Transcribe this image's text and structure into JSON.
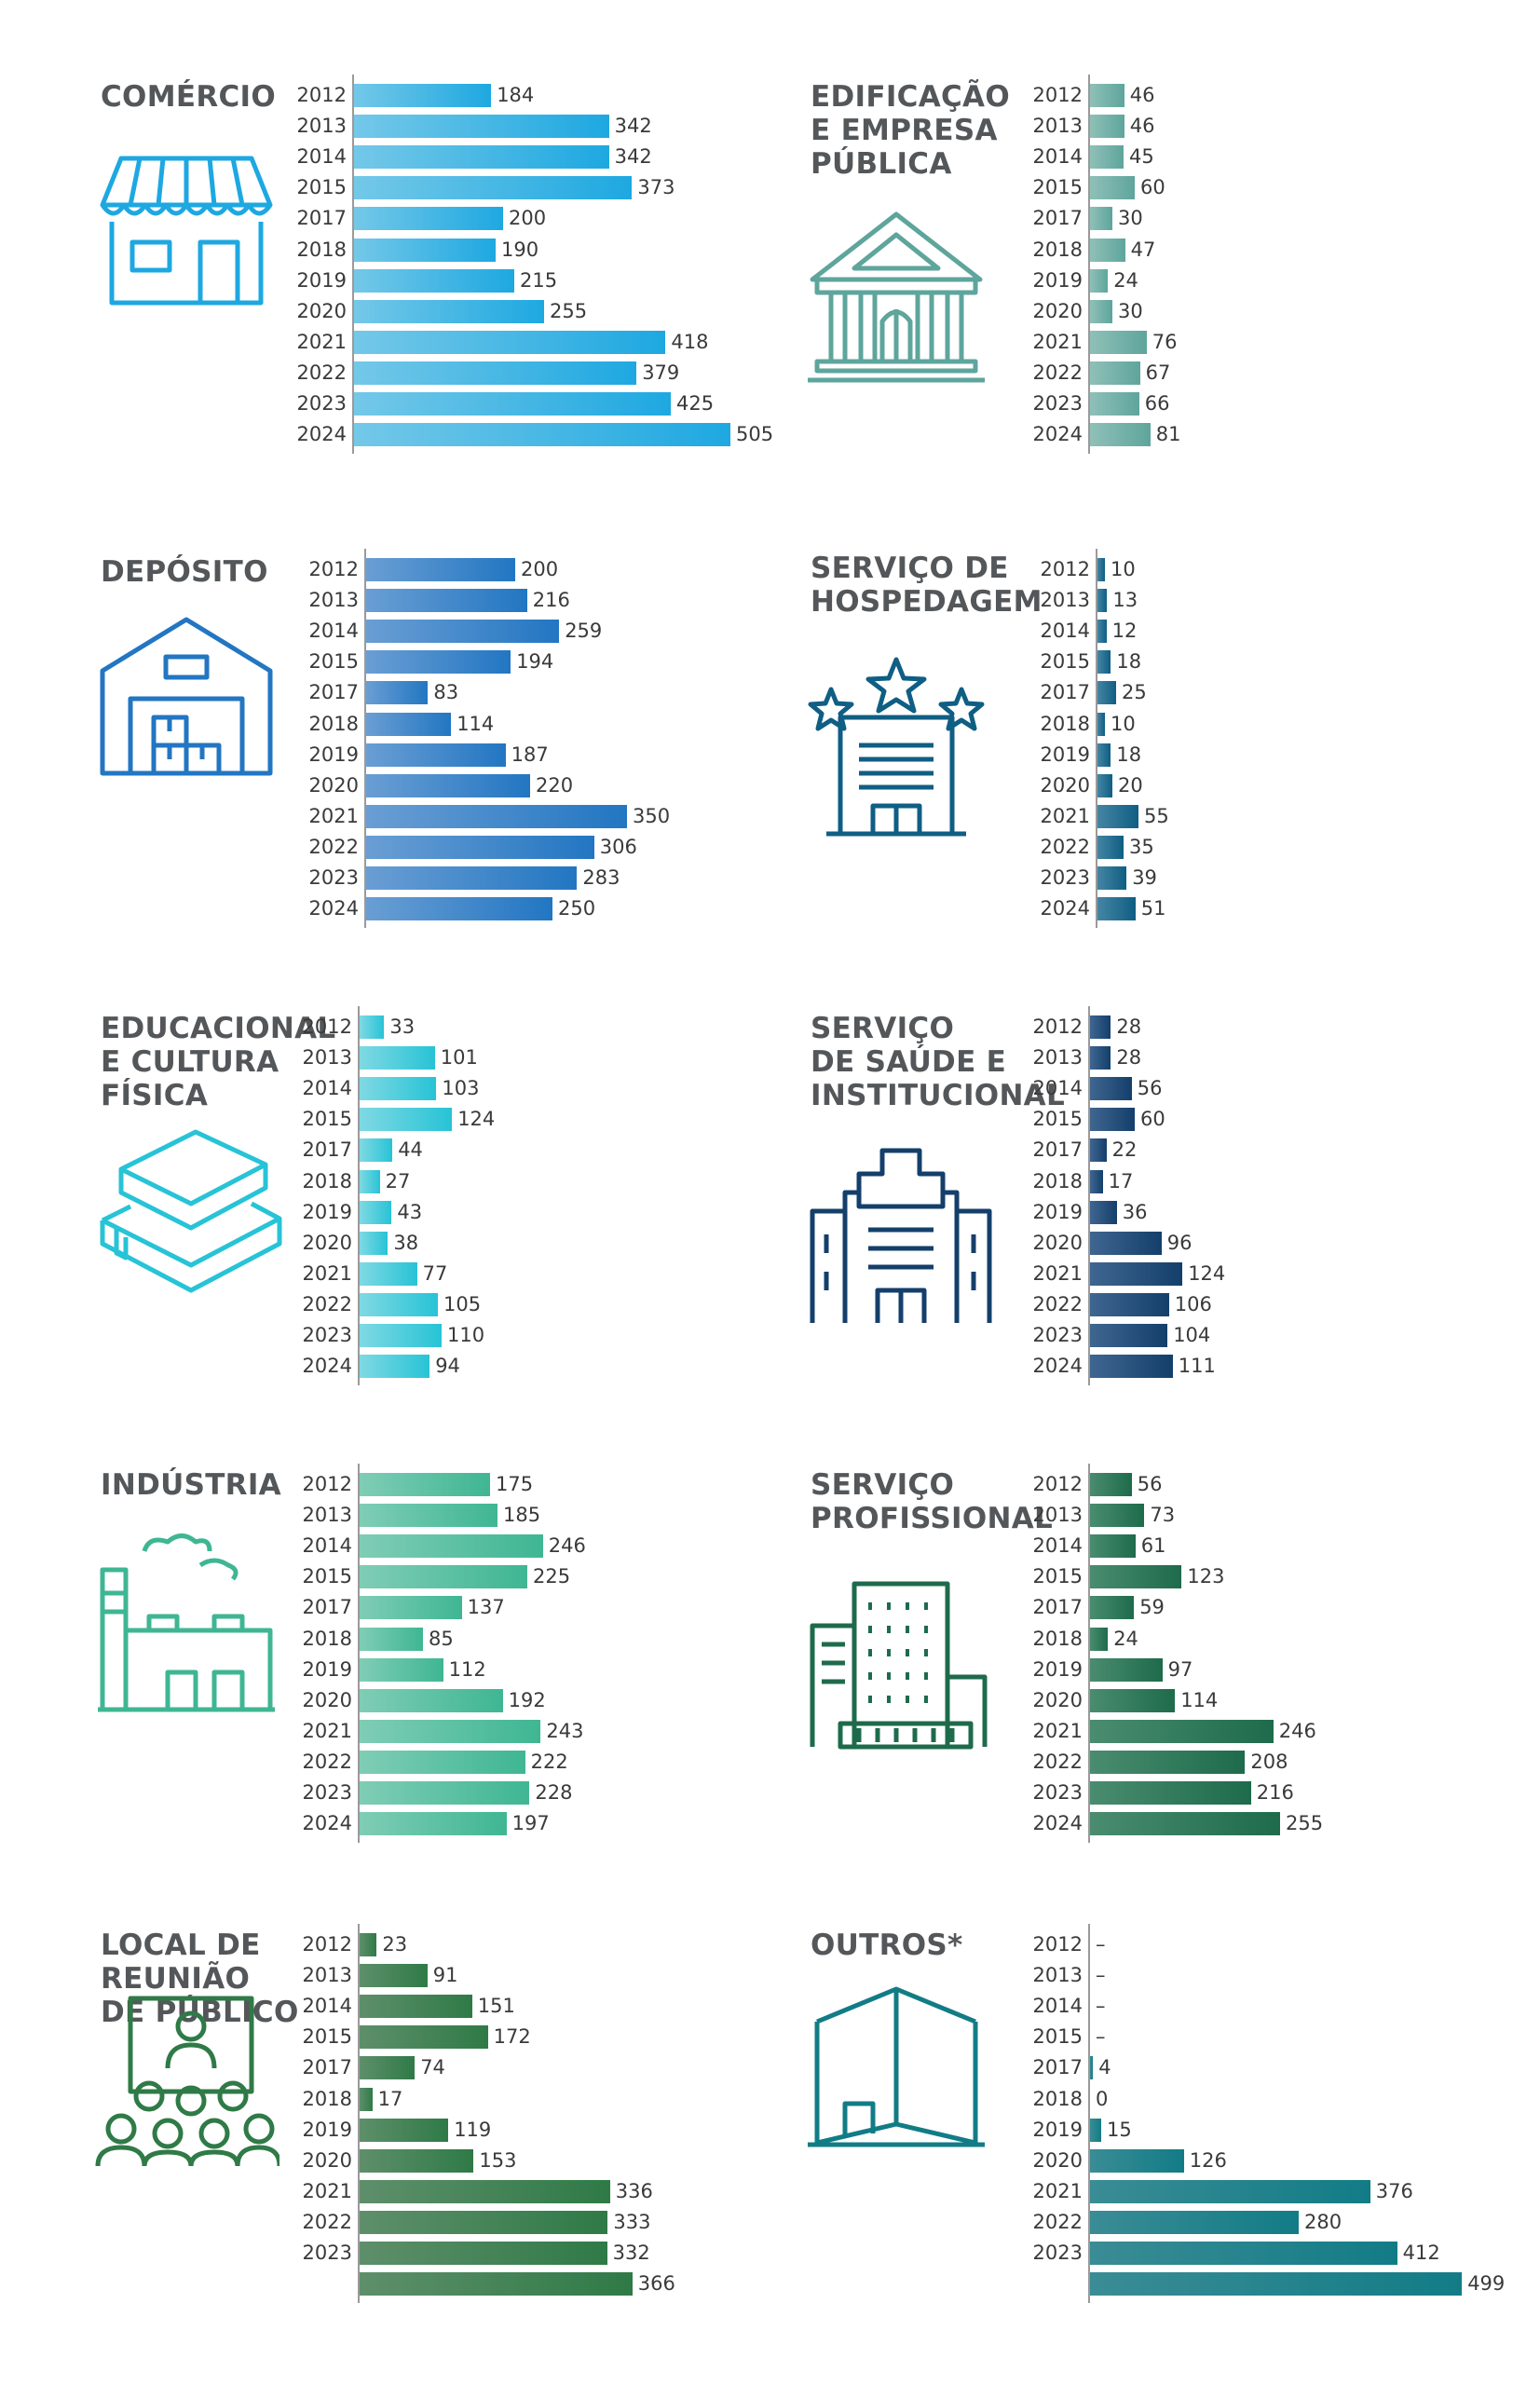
{
  "chart_data": [
    {
      "type": "bar",
      "title": [
        "COMÉRCIO"
      ],
      "icon": "shop-icon",
      "colors": [
        "#74c8e8",
        "#1ea8e1"
      ],
      "categories": [
        "2012",
        "2013",
        "2014",
        "2015",
        "2017",
        "2018",
        "2019",
        "2020",
        "2021",
        "2022",
        "2023",
        "2024"
      ],
      "values": [
        184,
        342,
        342,
        373,
        200,
        190,
        215,
        255,
        418,
        379,
        425,
        505
      ],
      "labels": [
        "184",
        "342",
        "342",
        "373",
        "200",
        "190",
        "215",
        "255",
        "418",
        "379",
        "425",
        "505"
      ]
    },
    {
      "type": "bar",
      "title": [
        "EDIFICAÇÃO",
        "E EMPRESA",
        "PÚBLICA"
      ],
      "icon": "government-building-icon",
      "colors": [
        "#8fc0b8",
        "#5ea59c"
      ],
      "categories": [
        "2012",
        "2013",
        "2014",
        "2015",
        "2017",
        "2018",
        "2019",
        "2020",
        "2021",
        "2022",
        "2023",
        "2024"
      ],
      "values": [
        46,
        46,
        45,
        60,
        30,
        47,
        24,
        30,
        76,
        67,
        66,
        81
      ],
      "labels": [
        "46",
        "46",
        "45",
        "60",
        "30",
        "47",
        "24",
        "30",
        "76",
        "67",
        "66",
        "81"
      ]
    },
    {
      "type": "bar",
      "title": [
        "DEPÓSITO"
      ],
      "icon": "warehouse-icon",
      "colors": [
        "#6a9ed4",
        "#2276c2"
      ],
      "categories": [
        "2012",
        "2013",
        "2014",
        "2015",
        "2017",
        "2018",
        "2019",
        "2020",
        "2021",
        "2022",
        "2023",
        "2024"
      ],
      "values": [
        200,
        216,
        259,
        194,
        83,
        114,
        187,
        220,
        350,
        306,
        283,
        250
      ],
      "labels": [
        "200",
        "216",
        "259",
        "194",
        "83",
        "114",
        "187",
        "220",
        "350",
        "306",
        "283",
        "250"
      ]
    },
    {
      "type": "bar",
      "title": [
        "SERVIÇO DE",
        "HOSPEDAGEM"
      ],
      "icon": "hotel-icon",
      "colors": [
        "#4585a3",
        "#0f5e84"
      ],
      "categories": [
        "2012",
        "2013",
        "2014",
        "2015",
        "2017",
        "2018",
        "2019",
        "2020",
        "2021",
        "2022",
        "2023",
        "2024"
      ],
      "values": [
        10,
        13,
        12,
        18,
        25,
        10,
        18,
        20,
        55,
        35,
        39,
        51
      ],
      "labels": [
        "10",
        "13",
        "12",
        "18",
        "25",
        "10",
        "18",
        "20",
        "55",
        "35",
        "39",
        "51"
      ]
    },
    {
      "type": "bar",
      "title": [
        "EDUCACIONAL",
        "E CULTURA",
        "FÍSICA"
      ],
      "icon": "books-icon",
      "colors": [
        "#7fd9e3",
        "#27c3d6"
      ],
      "categories": [
        "2012",
        "2013",
        "2014",
        "2015",
        "2017",
        "2018",
        "2019",
        "2020",
        "2021",
        "2022",
        "2023",
        "2024"
      ],
      "values": [
        33,
        101,
        103,
        124,
        44,
        27,
        43,
        38,
        77,
        105,
        110,
        94
      ],
      "labels": [
        "33",
        "101",
        "103",
        "124",
        "44",
        "27",
        "43",
        "38",
        "77",
        "105",
        "110",
        "94"
      ]
    },
    {
      "type": "bar",
      "title": [
        "SERVIÇO",
        "DE SAÚDE E",
        "INSTITUCIONAL"
      ],
      "icon": "hospital-icon",
      "colors": [
        "#3f6690",
        "#143f6b"
      ],
      "categories": [
        "2012",
        "2013",
        "2014",
        "2015",
        "2017",
        "2018",
        "2019",
        "2020",
        "2021",
        "2022",
        "2023",
        "2024"
      ],
      "values": [
        28,
        28,
        56,
        60,
        22,
        17,
        36,
        96,
        124,
        106,
        104,
        111
      ],
      "labels": [
        "28",
        "28",
        "56",
        "60",
        "22",
        "17",
        "36",
        "96",
        "124",
        "106",
        "104",
        "111"
      ]
    },
    {
      "type": "bar",
      "title": [
        "INDÚSTRIA"
      ],
      "icon": "factory-icon",
      "colors": [
        "#7fcdb5",
        "#3fb693"
      ],
      "categories": [
        "2012",
        "2013",
        "2014",
        "2015",
        "2017",
        "2018",
        "2019",
        "2020",
        "2021",
        "2022",
        "2023",
        "2024"
      ],
      "values": [
        175,
        185,
        246,
        225,
        137,
        85,
        112,
        192,
        243,
        222,
        228,
        197
      ],
      "labels": [
        "175",
        "185",
        "246",
        "225",
        "137",
        "85",
        "112",
        "192",
        "243",
        "222",
        "228",
        "197"
      ]
    },
    {
      "type": "bar",
      "title": [
        "SERVIÇO",
        "PROFISSIONAL"
      ],
      "icon": "office-building-icon",
      "colors": [
        "#4a8c6f",
        "#1e6b4c"
      ],
      "categories": [
        "2012",
        "2013",
        "2014",
        "2015",
        "2017",
        "2018",
        "2019",
        "2020",
        "2021",
        "2022",
        "2023",
        "2024"
      ],
      "values": [
        56,
        73,
        61,
        123,
        59,
        24,
        97,
        114,
        246,
        208,
        216,
        255
      ],
      "labels": [
        "56",
        "73",
        "61",
        "123",
        "59",
        "24",
        "97",
        "114",
        "246",
        "208",
        "216",
        "255"
      ]
    },
    {
      "type": "bar",
      "title": [
        "LOCAL DE",
        "REUNIÃO",
        "DE PÚBLICO"
      ],
      "icon": "audience-icon",
      "colors": [
        "#5e8f6a",
        "#2f7a47"
      ],
      "categories": [
        "2012",
        "2013",
        "2014",
        "2015",
        "2017",
        "2018",
        "2019",
        "2020",
        "2021",
        "2022",
        "2023",
        ""
      ],
      "values": [
        23,
        91,
        151,
        172,
        74,
        17,
        119,
        153,
        336,
        333,
        332,
        366
      ],
      "labels": [
        "23",
        "91",
        "151",
        "172",
        "74",
        "17",
        "119",
        "153",
        "336",
        "333",
        "332",
        "366"
      ]
    },
    {
      "type": "bar",
      "title": [
        "OUTROS*"
      ],
      "icon": "box-building-icon",
      "colors": [
        "#3a8c95",
        "#127c86"
      ],
      "categories": [
        "2012",
        "2013",
        "2014",
        "2015",
        "2017",
        "2018",
        "2019",
        "2020",
        "2021",
        "2022",
        "2023",
        ""
      ],
      "values": [
        0,
        0,
        0,
        0,
        4,
        0,
        15,
        126,
        376,
        280,
        412,
        499
      ],
      "labels": [
        "–",
        "–",
        "–",
        "–",
        "4",
        "0",
        "15",
        "126",
        "376",
        "280",
        "412",
        "499"
      ]
    }
  ]
}
